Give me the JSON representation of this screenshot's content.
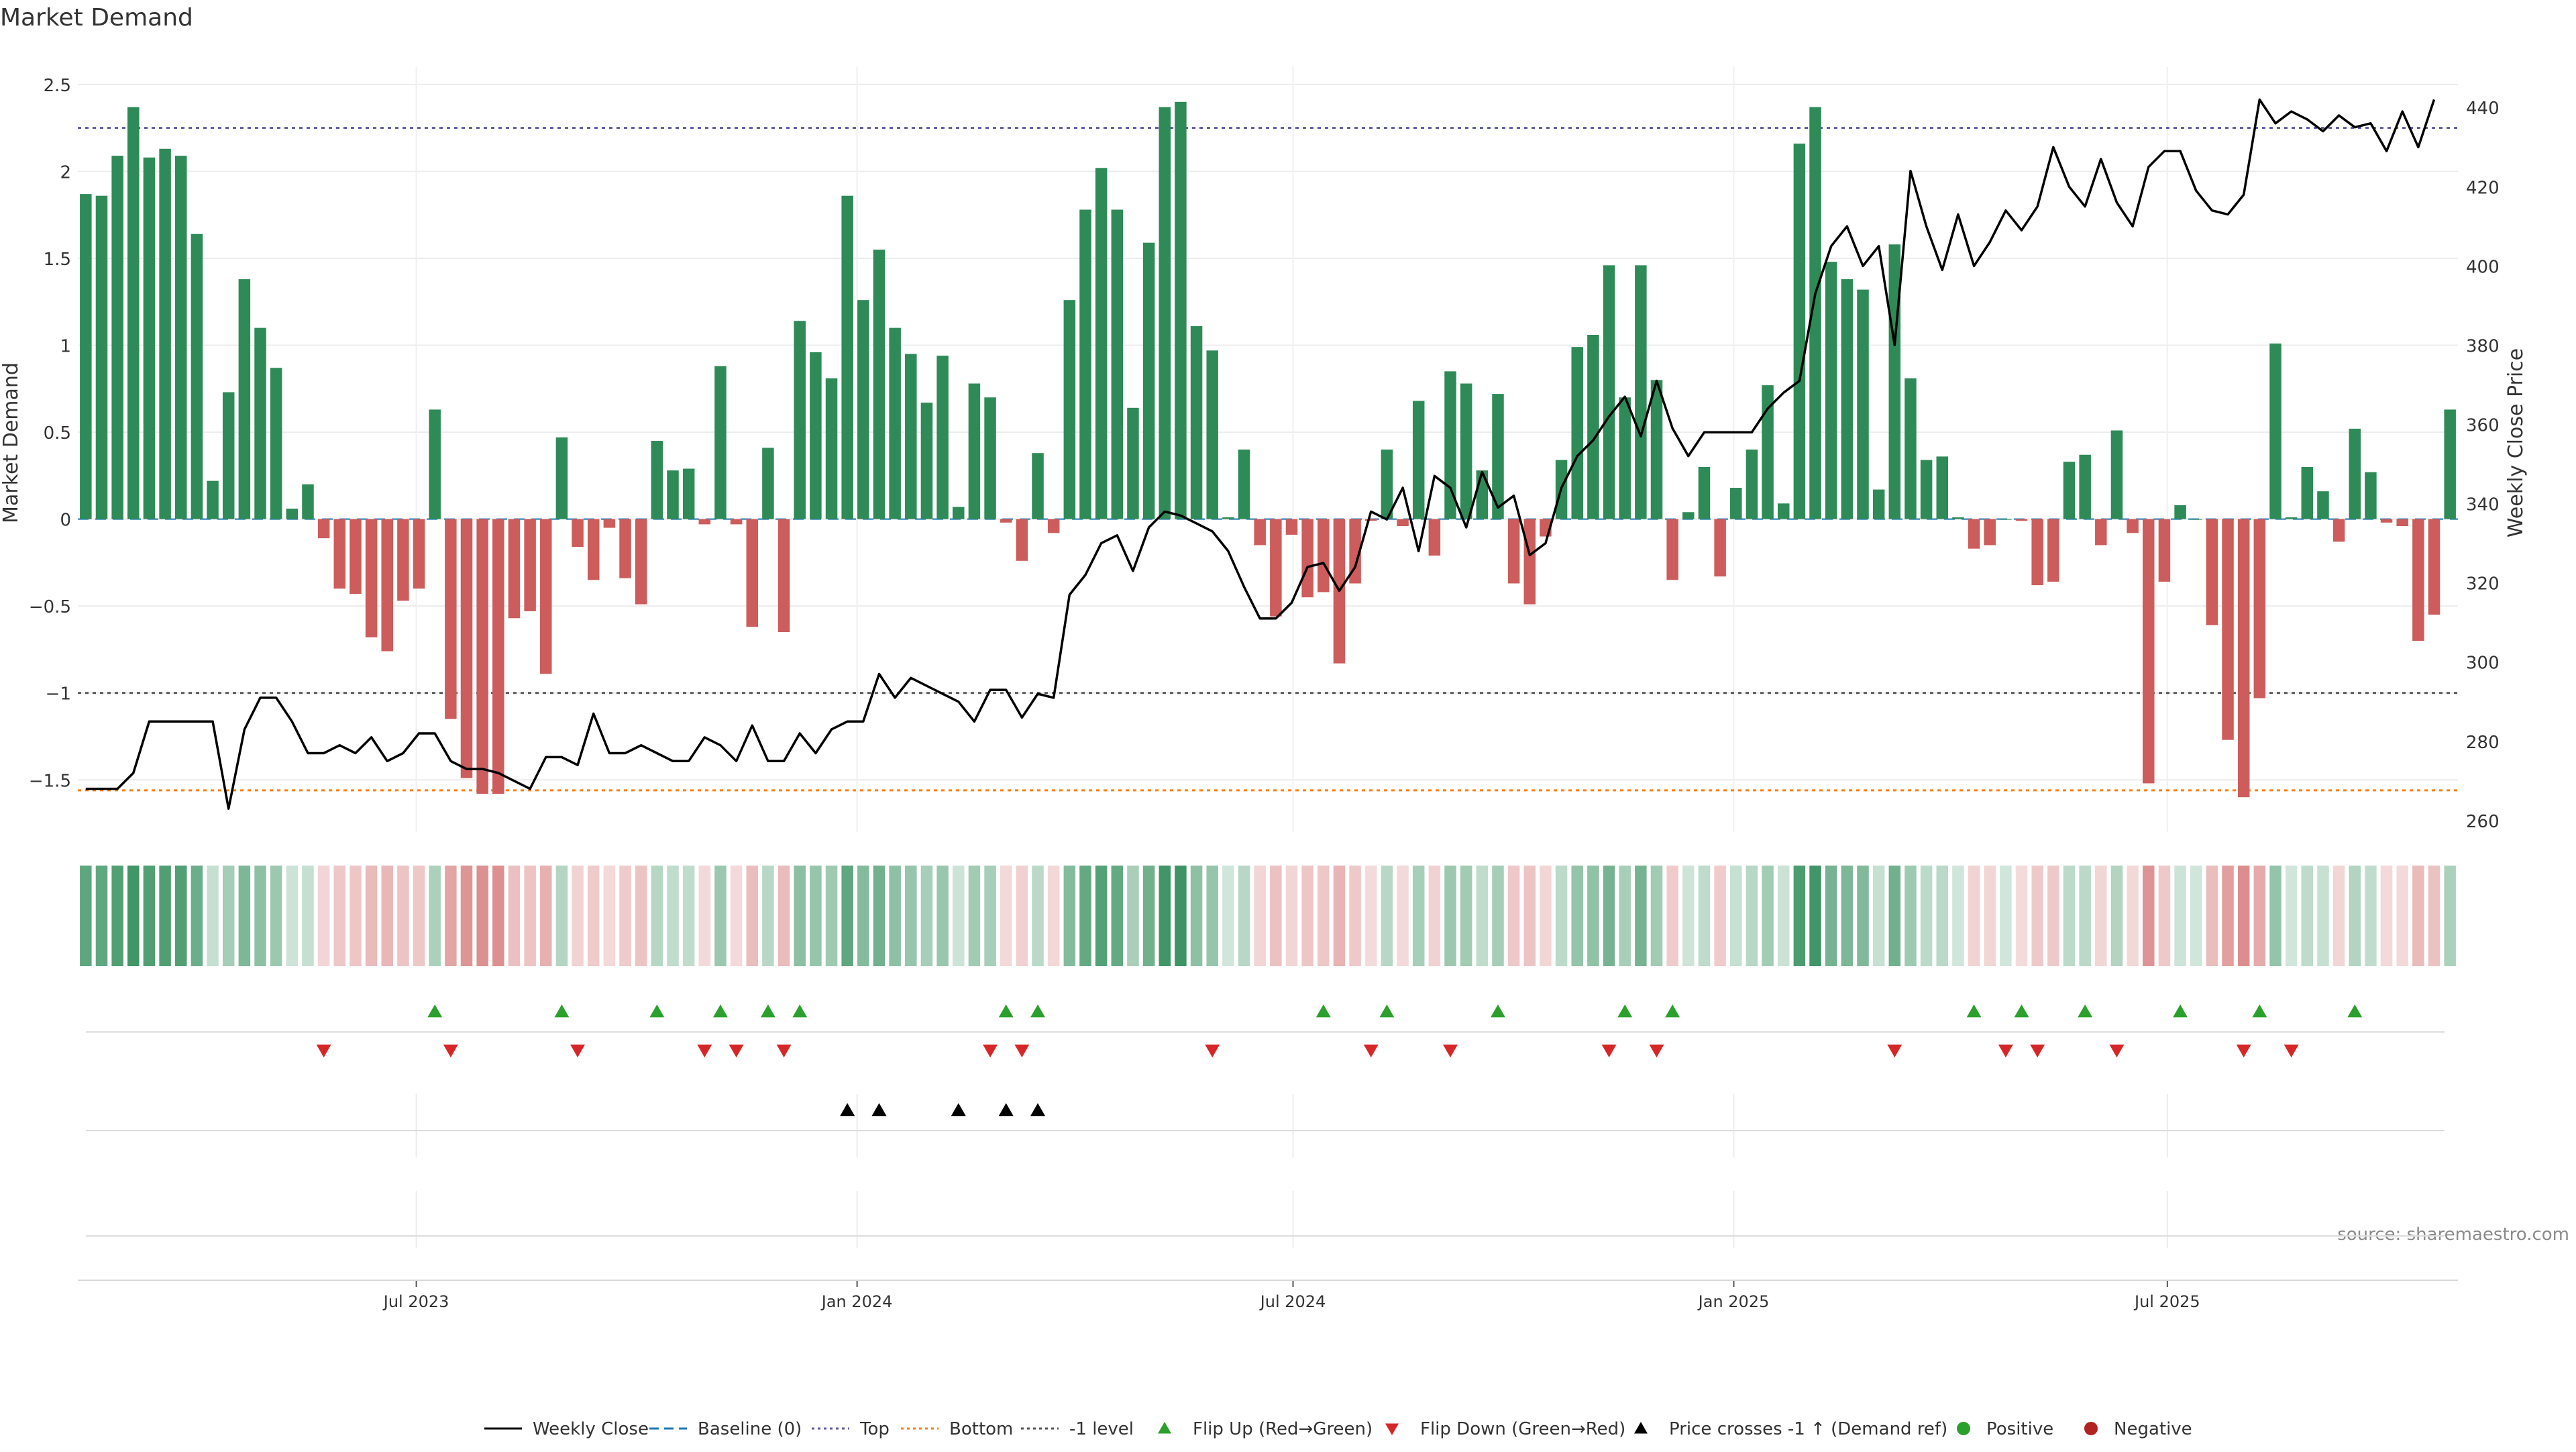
{
  "chart_data": {
    "type": "bar",
    "title": "Market Demand",
    "ylabel": "Market Demand",
    "y2label": "Weekly Close Price",
    "ylim": [
      -1.8,
      2.6
    ],
    "y2lim": [
      257.1,
      450.2
    ],
    "yticks": [
      2.5,
      2,
      1.5,
      1,
      0.5,
      0,
      -0.5,
      -1,
      -1.5
    ],
    "ytick_labels": [
      "2.5",
      "2",
      "1.5",
      "1",
      "0.5",
      "0",
      "−0.5",
      "−1",
      "−1.5"
    ],
    "y2ticks": [
      440,
      420,
      400,
      380,
      360,
      340,
      320,
      300,
      280,
      260
    ],
    "y2tick_labels": [
      "440",
      "420",
      "400",
      "380",
      "360",
      "340",
      "320",
      "300",
      "280",
      "260"
    ],
    "date_range": [
      "2023-02-13",
      "2025-10-27"
    ],
    "xticks": [
      "2023-07-01",
      "2024-01-01",
      "2024-07-01",
      "2025-01-01",
      "2025-07-01"
    ],
    "xtick_labels": [
      "Jul 2023",
      "Jan 2024",
      "Jul 2024",
      "Jan 2025",
      "Jul 2025"
    ],
    "grid": true,
    "reference_lines": [
      {
        "name": "Baseline (0)",
        "value": 0,
        "color": "#1f77b4",
        "style": "dashed"
      },
      {
        "name": "Top",
        "value": 2.25,
        "color": "#5a5a9e",
        "style": "dotted"
      },
      {
        "name": "Bottom",
        "value": -1.56,
        "color": "#ff7f0e",
        "style": "dotted"
      },
      {
        "name": "-1 level",
        "value": -1,
        "color": "#555555",
        "style": "dotted"
      }
    ],
    "series": [
      {
        "name": "Market Demand",
        "kind": "bar",
        "positive_color": "#2e8b57",
        "negative_color": "#cd5c5c",
        "values": [
          1.87,
          1.86,
          2.09,
          2.37,
          2.08,
          2.13,
          2.09,
          1.64,
          0.22,
          0.73,
          1.38,
          1.1,
          0.87,
          0.06,
          0.2,
          -0.11,
          -0.4,
          -0.43,
          -0.68,
          -0.76,
          -0.47,
          -0.4,
          0.63,
          -1.15,
          -1.49,
          -1.58,
          -1.58,
          -0.57,
          -0.53,
          -0.89,
          0.47,
          -0.16,
          -0.35,
          -0.05,
          -0.34,
          -0.49,
          0.45,
          0.28,
          0.29,
          -0.03,
          0.88,
          -0.03,
          -0.62,
          0.41,
          -0.65,
          1.14,
          0.96,
          0.81,
          1.86,
          1.26,
          1.55,
          1.1,
          0.95,
          0.67,
          0.94,
          0.07,
          0.78,
          0.7,
          -0.02,
          -0.24,
          0.38,
          -0.08,
          1.26,
          1.78,
          2.02,
          1.78,
          0.64,
          1.59,
          2.37,
          2.4,
          1.11,
          0.97,
          0.01,
          0.4,
          -0.15,
          -0.56,
          -0.09,
          -0.45,
          -0.42,
          -0.83,
          -0.37,
          -0.01,
          0.4,
          -0.04,
          0.68,
          -0.21,
          0.85,
          0.78,
          0.28,
          0.72,
          -0.37,
          -0.49,
          -0.1,
          0.34,
          0.99,
          1.06,
          1.46,
          0.7,
          1.46,
          0.8,
          -0.35,
          0.04,
          0.3,
          -0.33,
          0.18,
          0.4,
          0.77,
          0.09,
          2.16,
          2.37,
          1.48,
          1.38,
          1.32,
          0.17,
          1.58,
          0.81,
          0.34,
          0.36,
          0.01,
          -0.17,
          -0.15,
          0.0,
          -0.01,
          -0.38,
          -0.36,
          0.33,
          0.37,
          -0.15,
          0.51,
          -0.08,
          -1.52,
          -0.36,
          0.08,
          0.0,
          -0.61,
          -1.27,
          -1.6,
          -1.03,
          1.01,
          0.01,
          0.3,
          0.16,
          -0.13,
          0.52,
          0.27,
          -0.02,
          -0.04,
          -0.7,
          -0.55,
          0.63
        ]
      },
      {
        "name": "Weekly Close",
        "kind": "line",
        "color": "#000000",
        "values": [
          268,
          268,
          268,
          272,
          285,
          285,
          285,
          285,
          285,
          263,
          283,
          291,
          291,
          285,
          277,
          277,
          279,
          277,
          281,
          275,
          277,
          282,
          282,
          275,
          273,
          273,
          272,
          270,
          268,
          276,
          276,
          274,
          287,
          277,
          277,
          279,
          277,
          275,
          275,
          281,
          279,
          275,
          284,
          275,
          275,
          282,
          277,
          283,
          285,
          285,
          297,
          291,
          296,
          294,
          292,
          290,
          285,
          293,
          293,
          286,
          292,
          291,
          317,
          322,
          330,
          332,
          323,
          334,
          338,
          337,
          335,
          333,
          328,
          319,
          311,
          311,
          315,
          324,
          325,
          318,
          324,
          338,
          336,
          344,
          328,
          347,
          344,
          334,
          348,
          339,
          342,
          327,
          330,
          344,
          352,
          356,
          362,
          367,
          357,
          371,
          359,
          352,
          358,
          358,
          358,
          358,
          364,
          368,
          371,
          393,
          405,
          410,
          400,
          405,
          380,
          424,
          410,
          399,
          413,
          400,
          406,
          414,
          409,
          415,
          430,
          420,
          415,
          427,
          416,
          410,
          425,
          429,
          429,
          419,
          414,
          413,
          418,
          442,
          436,
          439,
          437,
          434,
          438,
          435,
          436,
          429,
          439,
          430,
          442
        ]
      }
    ],
    "signal_rows": [
      {
        "name": "Flip Up (Red→Green)",
        "marker": "triangle-up",
        "color": "#2ca02c",
        "indices": [
          22,
          30,
          36,
          40,
          43,
          45,
          58,
          60,
          78,
          82,
          89,
          97,
          100,
          119,
          122,
          126,
          132,
          137,
          143
        ]
      },
      {
        "name": "Flip Down (Green→Red)",
        "marker": "triangle-down",
        "color": "#d62728",
        "indices": [
          15,
          23,
          31,
          39,
          41,
          44,
          57,
          59,
          71,
          81,
          86,
          96,
          99,
          114,
          121,
          123,
          128,
          136,
          139
        ]
      },
      {
        "name": "Price crosses -1 ↑ (Demand ref)",
        "marker": "triangle-up",
        "color": "#000000",
        "indices": [
          48,
          50,
          55,
          58,
          60
        ]
      },
      {
        "name": "Positive / Negative",
        "marker": "circle",
        "indices": []
      }
    ],
    "heat_strip": {
      "positive_color": "#2e8b57",
      "negative_color": "#cd5c5c"
    },
    "legend": {
      "placement": "bottom",
      "entries": [
        {
          "label": "Weekly Close",
          "icon": "solid-line",
          "color": "#000000"
        },
        {
          "label": "Baseline (0)",
          "icon": "dashed-line",
          "color": "#1f77b4"
        },
        {
          "label": "Top",
          "icon": "dotted-line",
          "color": "#5a5a9e"
        },
        {
          "label": "Bottom",
          "icon": "dotted-line",
          "color": "#ff7f0e"
        },
        {
          "label": "-1 level",
          "icon": "dotted-line",
          "color": "#555555"
        },
        {
          "label": "Flip Up (Red→Green)",
          "icon": "triangle-up",
          "color": "#2ca02c"
        },
        {
          "label": "Flip Down (Green→Red)",
          "icon": "triangle-down",
          "color": "#d62728"
        },
        {
          "label": "Price crosses -1 ↑ (Demand ref)",
          "icon": "triangle-up",
          "color": "#000000"
        },
        {
          "label": "Positive",
          "icon": "circle",
          "color": "#2ca02c"
        },
        {
          "label": "Negative",
          "icon": "circle",
          "color": "#b22222"
        }
      ]
    },
    "source": "source: sharemaestro.com"
  }
}
